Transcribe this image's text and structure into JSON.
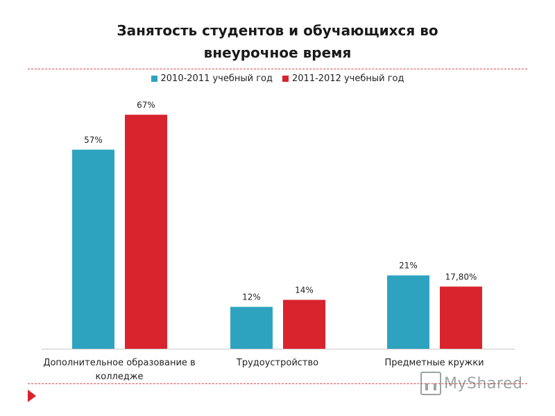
{
  "chart_data": {
    "type": "bar",
    "title_lines": [
      "Занятость студентов и обучающихся во",
      "внеурочное время"
    ],
    "categories": [
      [
        "Дополнительное образование в",
        "колледже"
      ],
      [
        "Трудоустройство"
      ],
      [
        "Предметные кружки"
      ]
    ],
    "series": [
      {
        "name": "2010-2011 учебный год",
        "color": "#2ea3c0",
        "values": [
          57,
          12,
          21
        ],
        "labels": [
          "57%",
          "12%",
          "21%"
        ]
      },
      {
        "name": "2011-2012 учебный год",
        "color": "#d9232d",
        "values": [
          67,
          14,
          17.8
        ],
        "labels": [
          "67%",
          "14%",
          "17,80%"
        ]
      }
    ],
    "ylim": [
      0,
      80
    ],
    "grid": false,
    "legend_position": "top"
  },
  "watermark": {
    "text": "MyShared",
    "icon": "presentation-board-icon"
  }
}
